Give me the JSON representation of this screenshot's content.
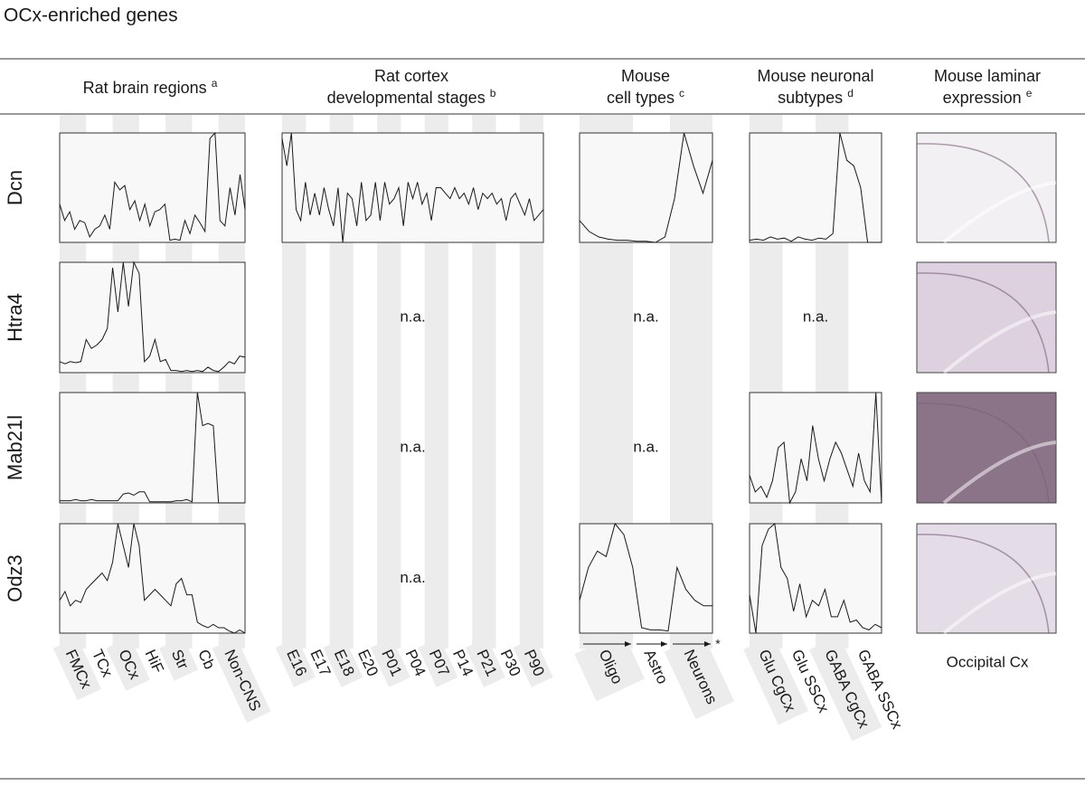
{
  "title": "OCx-enriched genes",
  "columns": [
    {
      "lines": [
        "Rat brain regions"
      ],
      "note": "a",
      "xlabels": [
        "FMCx",
        "TCx",
        "OCx",
        "HiF",
        "Str",
        "Cb",
        "Non-CNS"
      ]
    },
    {
      "lines": [
        "Rat cortex",
        "developmental stages"
      ],
      "note": "b",
      "xlabels": [
        "E16",
        "E17",
        "E18",
        "E20",
        "P01",
        "P04",
        "P07",
        "P14",
        "P21",
        "P30",
        "P90"
      ]
    },
    {
      "lines": [
        "Mouse",
        "cell types"
      ],
      "note": "c",
      "xlabels": [
        "Oligo",
        "Astro",
        "Neurons"
      ],
      "mark": "*"
    },
    {
      "lines": [
        "Mouse neuronal",
        "subtypes"
      ],
      "note": "d",
      "xlabels": [
        "Glu CgCx",
        "Glu SSCx",
        "GABA CgCx",
        "GABA SSCx"
      ]
    },
    {
      "lines": [
        "Mouse laminar",
        "expression"
      ],
      "note": "e",
      "caption": "Occipital Cx"
    }
  ],
  "rows": [
    {
      "gene": "Dcn",
      "panels": [
        {
          "type": "line",
          "ylim": [
            0,
            100
          ],
          "values": [
            35,
            20,
            28,
            12,
            20,
            18,
            5,
            12,
            15,
            25,
            12,
            55,
            48,
            52,
            30,
            38,
            20,
            35,
            15,
            28,
            30,
            35,
            2,
            3,
            2,
            20,
            8,
            25,
            18,
            10,
            95,
            100,
            20,
            15,
            50,
            25,
            62,
            30
          ]
        },
        {
          "type": "line",
          "ylim": [
            0,
            100
          ],
          "values": [
            95,
            70,
            100,
            30,
            20,
            55,
            25,
            45,
            25,
            50,
            30,
            15,
            50,
            0,
            45,
            40,
            15,
            55,
            20,
            25,
            55,
            20,
            55,
            35,
            40,
            50,
            15,
            55,
            40,
            55,
            35,
            45,
            20,
            50,
            50,
            45,
            40,
            50,
            40,
            45,
            35,
            50,
            30,
            45,
            40,
            45,
            35,
            40,
            20,
            40,
            45,
            35,
            25,
            40,
            20,
            25,
            30
          ]
        },
        {
          "type": "line",
          "ylim": [
            0,
            100
          ],
          "values": [
            20,
            10,
            5,
            3,
            2,
            2,
            1,
            1,
            0,
            5,
            40,
            100,
            70,
            45,
            75
          ]
        },
        {
          "type": "line",
          "ylim": [
            0,
            100
          ],
          "values": [
            2,
            3,
            2,
            5,
            3,
            4,
            1,
            5,
            3,
            2,
            4,
            3,
            8,
            100,
            75,
            70,
            50,
            0,
            0,
            0
          ]
        },
        {
          "type": "image",
          "color": "#f3f0f4"
        }
      ]
    },
    {
      "gene": "Htra4",
      "panels": [
        {
          "type": "line",
          "ylim": [
            0,
            100
          ],
          "values": [
            10,
            8,
            10,
            9,
            10,
            30,
            22,
            25,
            30,
            40,
            95,
            55,
            100,
            60,
            100,
            90,
            10,
            15,
            30,
            10,
            12,
            2,
            2,
            1,
            2,
            1,
            2,
            1,
            5,
            2,
            1,
            5,
            10,
            8,
            15,
            14
          ]
        },
        {
          "type": "text",
          "text": "n.a."
        },
        {
          "type": "text",
          "text": "n.a."
        },
        {
          "type": "text",
          "text": "n.a."
        },
        {
          "type": "image",
          "color": "#ddd0df"
        }
      ]
    },
    {
      "gene": "Mab21l",
      "panels": [
        {
          "type": "line",
          "ylim": [
            0,
            100
          ],
          "values": [
            2,
            2,
            2,
            3,
            2,
            2,
            3,
            2,
            2,
            2,
            2,
            2,
            8,
            9,
            7,
            10,
            10,
            1,
            1,
            1,
            1,
            1,
            2,
            2,
            3,
            1,
            100,
            70,
            72,
            70,
            0,
            0,
            0,
            0,
            0,
            0
          ]
        },
        {
          "type": "text",
          "text": "n.a."
        },
        {
          "type": "text",
          "text": "n.a."
        },
        {
          "type": "line",
          "ylim": [
            0,
            100
          ],
          "values": [
            25,
            10,
            15,
            5,
            20,
            50,
            55,
            0,
            10,
            40,
            20,
            70,
            40,
            20,
            40,
            55,
            45,
            30,
            15,
            45,
            20,
            10,
            100,
            0
          ]
        },
        {
          "type": "image",
          "color": "#8c7488"
        }
      ]
    },
    {
      "gene": "Odz3",
      "panels": [
        {
          "type": "line",
          "ylim": [
            0,
            100
          ],
          "values": [
            30,
            38,
            25,
            30,
            28,
            40,
            45,
            50,
            55,
            48,
            65,
            100,
            80,
            60,
            100,
            80,
            30,
            35,
            40,
            35,
            30,
            25,
            45,
            50,
            35,
            35,
            10,
            7,
            5,
            8,
            5,
            5,
            2,
            0,
            3,
            0
          ]
        },
        {
          "type": "text",
          "text": "n.a."
        },
        {
          "type": "line",
          "ylim": [
            0,
            100
          ],
          "values": [
            30,
            60,
            75,
            70,
            100,
            90,
            60,
            5,
            3,
            3,
            2,
            60,
            40,
            30,
            25,
            25
          ]
        },
        {
          "type": "line",
          "ylim": [
            0,
            100
          ],
          "values": [
            35,
            0,
            80,
            95,
            100,
            60,
            50,
            20,
            45,
            15,
            30,
            25,
            40,
            15,
            15,
            30,
            10,
            12,
            5,
            3,
            8,
            5
          ]
        },
        {
          "type": "image",
          "color": "#e4dce6"
        }
      ]
    }
  ]
}
